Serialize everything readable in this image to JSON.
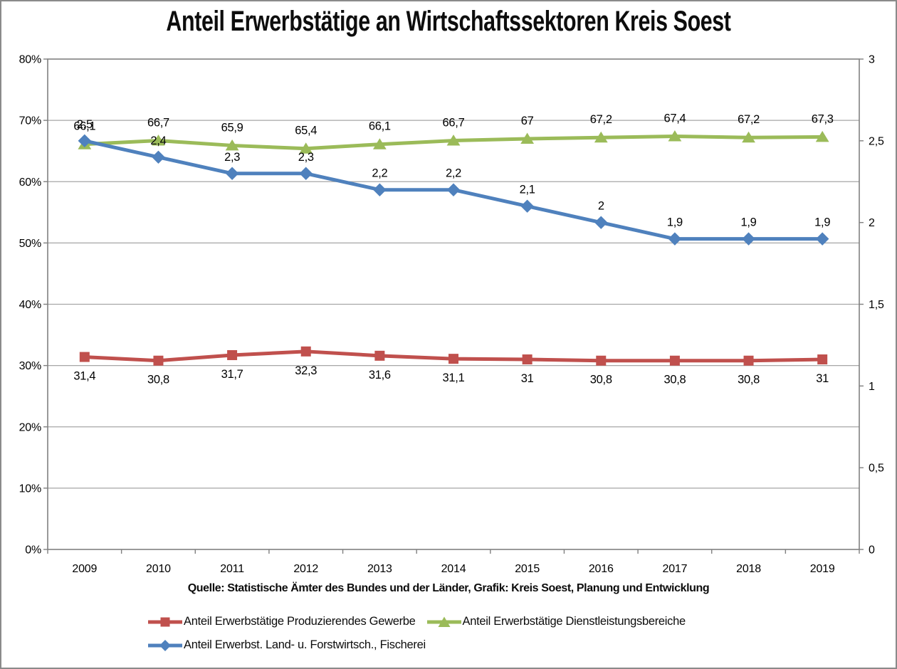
{
  "frame": {
    "border_color": "#8a8a8a",
    "background": "#ffffff"
  },
  "chart_data": {
    "type": "line",
    "title": "Anteil Erwerbstätige an Wirtschaftssektoren Kreis Soest",
    "source_caption": "Quelle: Statistische Ämter des Bundes und der Länder, Grafik: Kreis Soest, Planung und Entwicklung",
    "categories": [
      "2009",
      "2010",
      "2011",
      "2012",
      "2013",
      "2014",
      "2015",
      "2016",
      "2017",
      "2018",
      "2019"
    ],
    "left_axis": {
      "min": 0,
      "max": 80,
      "step": 10,
      "tick_labels": [
        "0%",
        "10%",
        "20%",
        "30%",
        "40%",
        "50%",
        "60%",
        "70%",
        "80%"
      ]
    },
    "right_axis": {
      "min": 0,
      "max": 3,
      "step": 0.5,
      "tick_labels": [
        "0",
        "0,5",
        "1",
        "1,5",
        "2",
        "2,5",
        "3"
      ]
    },
    "grid": {
      "horizontal": true,
      "vertical": false,
      "color": "#a6a6a6"
    },
    "axis_color": "#808080",
    "legend_rows": [
      [
        0,
        1
      ],
      [
        2
      ]
    ],
    "series": [
      {
        "name": "Anteil Erwerbstätige Produzierendes Gewerbe",
        "axis": "left",
        "color": "#c0504d",
        "marker": "square",
        "label_position": "below",
        "values": [
          31.4,
          30.8,
          31.7,
          32.3,
          31.6,
          31.1,
          31,
          30.8,
          30.8,
          30.8,
          31
        ],
        "labels": [
          "31,4",
          "30,8",
          "31,7",
          "32,3",
          "31,6",
          "31,1",
          "31",
          "30,8",
          "30,8",
          "30,8",
          "31"
        ]
      },
      {
        "name": "Anteil Erwerbstätige Dienstleistungsbereiche",
        "axis": "left",
        "color": "#9bbb59",
        "marker": "triangle",
        "label_position": "above",
        "values": [
          66.1,
          66.7,
          65.9,
          65.4,
          66.1,
          66.7,
          67,
          67.2,
          67.4,
          67.2,
          67.3
        ],
        "labels": [
          "66,1",
          "66,7",
          "65,9",
          "65,4",
          "66,1",
          "66,7",
          "67",
          "67,2",
          "67,4",
          "67,2",
          "67,3"
        ]
      },
      {
        "name": "Anteil Erwerbst. Land- u. Forstwirtsch., Fischerei",
        "axis": "right",
        "color": "#4f81bd",
        "marker": "diamond",
        "label_position": "above",
        "values": [
          2.5,
          2.4,
          2.3,
          2.3,
          2.2,
          2.2,
          2.1,
          2,
          1.9,
          1.9,
          1.9
        ],
        "labels": [
          "2,5",
          "2,4",
          "2,3",
          "2,3",
          "2,2",
          "2,2",
          "2,1",
          "2",
          "1,9",
          "1,9",
          "1,9"
        ]
      }
    ]
  }
}
